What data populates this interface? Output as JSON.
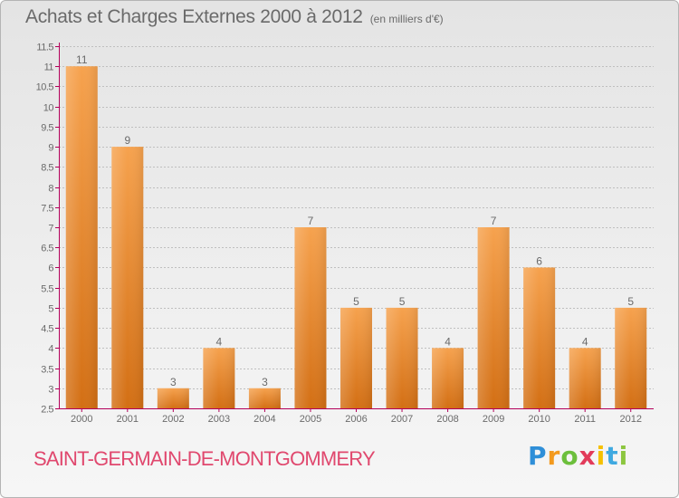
{
  "header": {
    "title": "Achats et Charges Externes 2000 à 2012",
    "subtitle": "(en milliers d'€)"
  },
  "footer": {
    "commune": "SAINT-GERMAIN-DE-MONTGOMMERY",
    "logo_letters": [
      "P",
      "r",
      "o",
      "x",
      "i",
      "t",
      "i"
    ],
    "logo_colors": [
      "#2f8fd8",
      "#f39a1e",
      "#6cbf3c",
      "#e23b5a",
      "#f5c000",
      "#3fa9e0",
      "#8cc63f"
    ]
  },
  "colors": {
    "bar_top": "#f6a24e",
    "bar_bottom": "#d36f14",
    "axis": "#b4005a",
    "grid": "#bfbfbf",
    "text": "#6a6a6a"
  },
  "chart_data": {
    "type": "bar",
    "categories": [
      "2000",
      "2001",
      "2002",
      "2003",
      "2004",
      "2005",
      "2006",
      "2007",
      "2008",
      "2009",
      "2010",
      "2011",
      "2012"
    ],
    "values": [
      11,
      9,
      3,
      4,
      3,
      7,
      5,
      5,
      4,
      7,
      6,
      4,
      5
    ],
    "data_labels": [
      "11",
      "9",
      "3",
      "4",
      "3",
      "7",
      "5",
      "5",
      "4",
      "7",
      "6",
      "4",
      "5"
    ],
    "title": "Achats et Charges Externes 2000 à 2012",
    "subtitle": "(en milliers d'€)",
    "ylim": [
      2.5,
      11.5
    ],
    "yticks": [
      2.5,
      3,
      3.5,
      4,
      4.5,
      5,
      5.5,
      6,
      6.5,
      7,
      7.5,
      8,
      8.5,
      9,
      9.5,
      10,
      10.5,
      11,
      11.5
    ],
    "ytick_labels": [
      "2.5",
      "3",
      "3.5",
      "4",
      "4.5",
      "5",
      "5.5",
      "6",
      "6.5",
      "7",
      "7.5",
      "8",
      "8.5",
      "9",
      "9.5",
      "10",
      "10.5",
      "11",
      "11.5"
    ],
    "grid": true
  }
}
